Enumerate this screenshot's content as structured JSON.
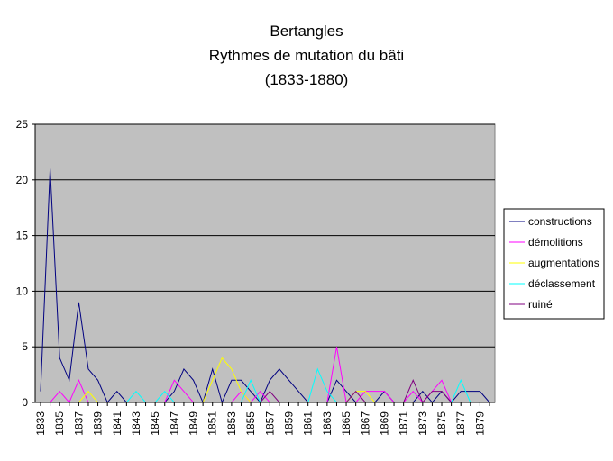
{
  "chart_data": {
    "type": "line",
    "title": [
      "Bertangles",
      "Rythmes de mutation du bâti",
      "(1833-1880)"
    ],
    "xlabel": "",
    "ylabel": "",
    "ylim": [
      0,
      25
    ],
    "yticks": [
      0,
      5,
      10,
      15,
      20,
      25
    ],
    "grid": true,
    "legend_position": "right",
    "plot_background": "#c0c0c0",
    "x": [
      1833,
      1834,
      1835,
      1836,
      1837,
      1838,
      1839,
      1840,
      1841,
      1842,
      1843,
      1844,
      1845,
      1846,
      1847,
      1848,
      1849,
      1850,
      1851,
      1852,
      1853,
      1854,
      1855,
      1856,
      1857,
      1858,
      1859,
      1860,
      1861,
      1862,
      1863,
      1864,
      1865,
      1866,
      1867,
      1868,
      1869,
      1870,
      1871,
      1872,
      1873,
      1874,
      1875,
      1876,
      1877,
      1878,
      1879,
      1880
    ],
    "xtick_labels": [
      "1833",
      "1835",
      "1837",
      "1839",
      "1841",
      "1843",
      "1845",
      "1847",
      "1849",
      "1851",
      "1853",
      "1855",
      "1857",
      "1859",
      "1861",
      "1863",
      "1865",
      "1867",
      "1869",
      "1871",
      "1873",
      "1875",
      "1877",
      "1879"
    ],
    "series": [
      {
        "name": "constructions",
        "color": "#000080",
        "values": [
          1,
          21,
          4,
          2,
          9,
          3,
          2,
          0,
          1,
          0,
          0,
          0,
          0,
          0,
          1,
          3,
          2,
          0,
          3,
          0,
          2,
          2,
          1,
          0,
          2,
          3,
          2,
          1,
          0,
          0,
          0,
          2,
          1,
          0,
          0,
          0,
          1,
          0,
          0,
          0,
          1,
          0,
          1,
          0,
          1,
          1,
          1,
          0
        ]
      },
      {
        "name": "démolitions",
        "color": "#ff00ff",
        "values": [
          0,
          0,
          1,
          0,
          2,
          0,
          0,
          0,
          0,
          0,
          0,
          0,
          0,
          0,
          2,
          1,
          0,
          0,
          0,
          0,
          0,
          1,
          0,
          1,
          0,
          0,
          0,
          0,
          0,
          0,
          0,
          5,
          0,
          0,
          1,
          1,
          1,
          0,
          0,
          1,
          0,
          1,
          2,
          0,
          0,
          0,
          0,
          0
        ]
      },
      {
        "name": "augmentations",
        "color": "#ffff00",
        "values": [
          0,
          0,
          0,
          0,
          0,
          1,
          0,
          0,
          0,
          0,
          0,
          0,
          0,
          0,
          0,
          0,
          0,
          0,
          2,
          4,
          3,
          1,
          0,
          0,
          0,
          0,
          0,
          0,
          0,
          0,
          0,
          0,
          0,
          1,
          1,
          0,
          0,
          0,
          0,
          0,
          0,
          0,
          0,
          0,
          0,
          0,
          0,
          0
        ]
      },
      {
        "name": "déclassement",
        "color": "#00ffff",
        "values": [
          0,
          0,
          0,
          0,
          0,
          0,
          0,
          0,
          0,
          0,
          1,
          0,
          0,
          1,
          0,
          0,
          0,
          0,
          0,
          0,
          0,
          0,
          2,
          0,
          0,
          0,
          0,
          0,
          0,
          3,
          1,
          0,
          0,
          0,
          0,
          0,
          0,
          0,
          0,
          0,
          0,
          0,
          0,
          0,
          2,
          0,
          0,
          0
        ]
      },
      {
        "name": "ruiné",
        "color": "#800080",
        "values": [
          0,
          0,
          0,
          0,
          0,
          0,
          0,
          0,
          0,
          0,
          0,
          0,
          0,
          0,
          0,
          0,
          0,
          0,
          0,
          0,
          0,
          0,
          0,
          0,
          1,
          0,
          0,
          0,
          0,
          0,
          0,
          0,
          0,
          1,
          0,
          0,
          0,
          0,
          0,
          2,
          0,
          1,
          1,
          0,
          0,
          0,
          0,
          0
        ]
      }
    ]
  }
}
